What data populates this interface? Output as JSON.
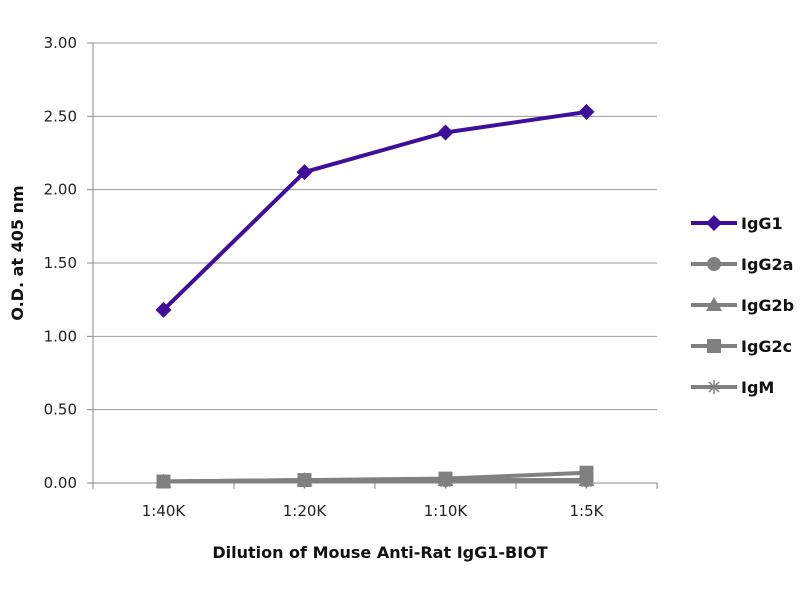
{
  "chart_data": {
    "type": "line",
    "title": "",
    "xlabel": "Dilution of Mouse Anti-Rat IgG1-BIOT",
    "ylabel": "O.D. at 405 nm",
    "categories": [
      "1:40K",
      "1:20K",
      "1:10K",
      "1:5K"
    ],
    "ylim": [
      0,
      3
    ],
    "yticks": [
      "0.00",
      "0.50",
      "1.00",
      "1.50",
      "2.00",
      "2.50",
      "3.00"
    ],
    "grid": true,
    "legend_position": "right",
    "series": [
      {
        "name": "IgG1",
        "values": [
          1.18,
          2.12,
          2.39,
          2.53
        ],
        "color": "#3f0f9a",
        "marker": "diamond"
      },
      {
        "name": "IgG2a",
        "values": [
          0.01,
          0.02,
          0.02,
          0.02
        ],
        "color": "#808080",
        "marker": "circle"
      },
      {
        "name": "IgG2b",
        "values": [
          0.01,
          0.02,
          0.02,
          0.02
        ],
        "color": "#808080",
        "marker": "triangle"
      },
      {
        "name": "IgG2c",
        "values": [
          0.01,
          0.02,
          0.03,
          0.07
        ],
        "color": "#808080",
        "marker": "square"
      },
      {
        "name": "IgM",
        "values": [
          0.01,
          0.01,
          0.01,
          0.01
        ],
        "color": "#808080",
        "marker": "star"
      }
    ]
  }
}
